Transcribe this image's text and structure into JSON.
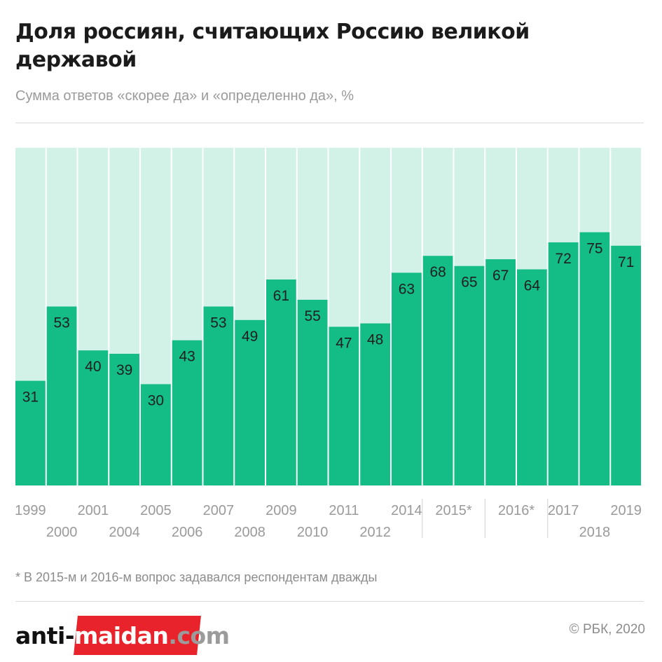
{
  "header": {
    "title": "Доля россиян, считающих Россию великой державой",
    "subtitle": "Сумма ответов «скорее да» и «определенно да», %"
  },
  "colors": {
    "bar": "#14bd85",
    "bar_background": "#d2f2e8",
    "value_text": "#1e1e1e",
    "tick_text": "#9a9a9a"
  },
  "chart_data": {
    "type": "bar",
    "categories": [
      "1999",
      "2000",
      "2001",
      "2004",
      "2005",
      "2006",
      "2007",
      "2008",
      "2009",
      "2010",
      "2011",
      "2012",
      "2014",
      "2015*",
      "2015*",
      "2016*",
      "2016*",
      "2017",
      "2018",
      "2019"
    ],
    "values": [
      31,
      53,
      40,
      39,
      30,
      43,
      53,
      49,
      61,
      55,
      47,
      48,
      63,
      68,
      65,
      67,
      64,
      72,
      75,
      71
    ],
    "ylim": [
      0,
      100
    ],
    "tick_labels": [
      {
        "text": "1999",
        "row": 1
      },
      {
        "text": "2000",
        "row": 2
      },
      {
        "text": "2001",
        "row": 1
      },
      {
        "text": "2004",
        "row": 2
      },
      {
        "text": "2005",
        "row": 1
      },
      {
        "text": "2006",
        "row": 2
      },
      {
        "text": "2007",
        "row": 1
      },
      {
        "text": "2008",
        "row": 2
      },
      {
        "text": "2009",
        "row": 1
      },
      {
        "text": "2010",
        "row": 2
      },
      {
        "text": "2011",
        "row": 1
      },
      {
        "text": "2012",
        "row": 2
      },
      {
        "text": "2014",
        "row": 1
      },
      {
        "text": "2015*",
        "row": 1,
        "span": 2
      },
      {
        "text": "2016*",
        "row": 1,
        "span": 2
      },
      {
        "text": "2017",
        "row": 1
      },
      {
        "text": "2018",
        "row": 2
      },
      {
        "text": "2019",
        "row": 1
      }
    ],
    "grid": false,
    "legend": "none"
  },
  "footer": {
    "footnote": "* В 2015-м и 2016-м вопрос задавался респондентам дважды",
    "credit": "© РБК, 2020"
  },
  "watermark": {
    "part1": "anti-",
    "part2": "maidan",
    "part3": ".com"
  }
}
